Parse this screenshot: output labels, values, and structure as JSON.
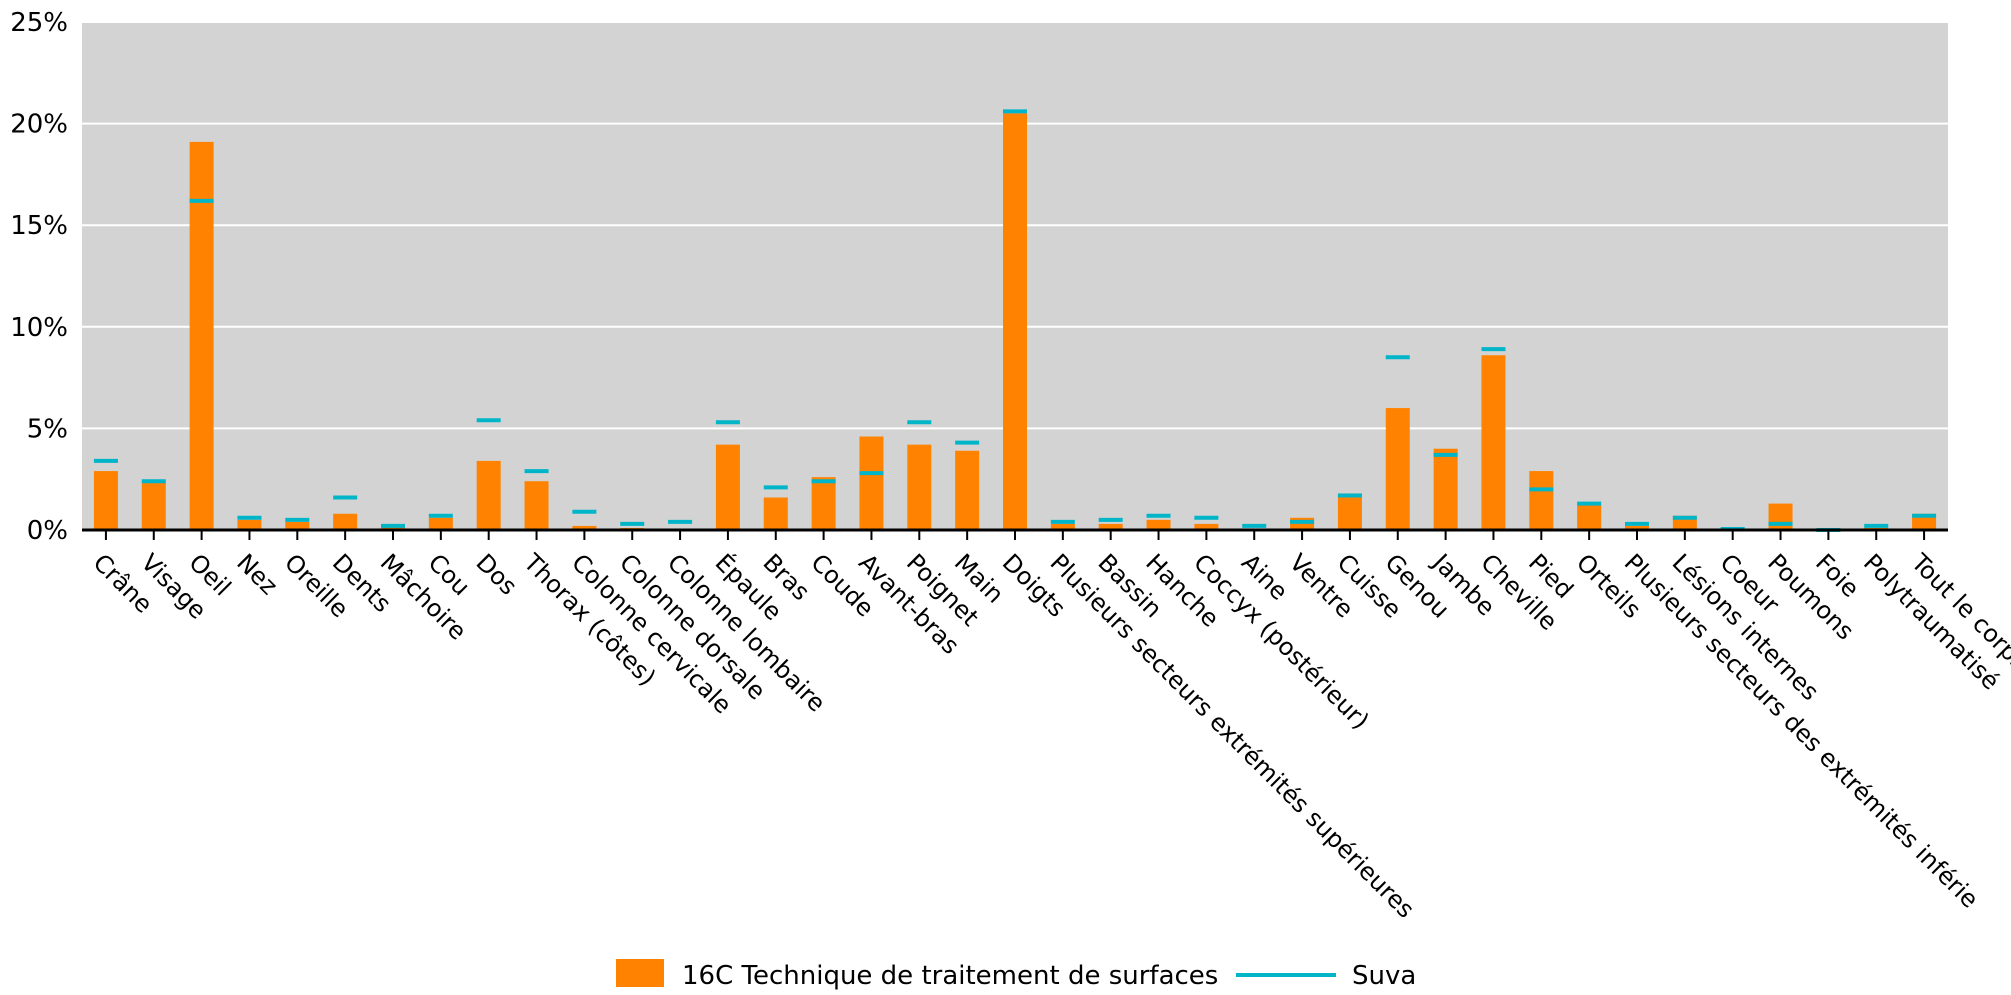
{
  "chart_data": {
    "type": "bar",
    "title": "",
    "xlabel": "",
    "ylabel": "",
    "ylim": [
      0,
      25
    ],
    "y_ticks": [
      "0%",
      "5%",
      "10%",
      "15%",
      "20%",
      "25%"
    ],
    "y_tick_values": [
      0,
      5,
      10,
      15,
      20,
      25
    ],
    "grid": true,
    "legend_position": "bottom",
    "categories": [
      "Crâne",
      "Visage",
      "Oeil",
      "Nez",
      "Oreille",
      "Dents",
      "Mâchoire",
      "Cou",
      "Dos",
      "Thorax (côtes)",
      "Colonne cervicale",
      "Colonne dorsale",
      "Colonne lombaire",
      "Épaule",
      "Bras",
      "Coude",
      "Avant-bras",
      "Poignet",
      "Main",
      "Doigts",
      "Plusieurs secteurs extrémités supérieures",
      "Bassin",
      "Hanche",
      "Coccyx (postérieur)",
      "Aine",
      "Ventre",
      "Cuisse",
      "Genou",
      "Jambe",
      "Cheville",
      "Pied",
      "Orteils",
      "Plusieurs secteurs des extrémités inférie",
      "Lésions internes",
      "Coeur",
      "Poumons",
      "Foie",
      "Polytraumatisé",
      "Tout le corps"
    ],
    "series": [
      {
        "name": "16C Technique de traitement de surfaces",
        "type": "bar",
        "color": "#ff8200",
        "values": [
          2.9,
          2.4,
          19.1,
          0.5,
          0.4,
          0.8,
          0.2,
          0.6,
          3.4,
          2.4,
          0.2,
          0.1,
          0.0,
          4.2,
          1.6,
          2.6,
          4.6,
          4.2,
          3.9,
          20.5,
          0.3,
          0.3,
          0.5,
          0.3,
          0.0,
          0.6,
          1.8,
          6.0,
          4.0,
          8.6,
          2.9,
          1.3,
          0.2,
          0.7,
          0.0,
          1.3,
          0.0,
          0.1,
          0.8
        ]
      },
      {
        "name": "Suva",
        "type": "marker",
        "color": "#00b5c8",
        "values": [
          3.4,
          2.4,
          16.2,
          0.6,
          0.5,
          1.6,
          0.2,
          0.7,
          5.4,
          2.9,
          0.9,
          0.3,
          0.4,
          5.3,
          2.1,
          2.4,
          2.8,
          5.3,
          4.3,
          20.6,
          0.4,
          0.5,
          0.7,
          0.6,
          0.2,
          0.4,
          1.7,
          8.5,
          3.7,
          8.9,
          2.0,
          1.3,
          0.3,
          0.6,
          0.05,
          0.3,
          0.0,
          0.2,
          0.7
        ]
      }
    ]
  },
  "colors": {
    "plot_background": "#d3d3d3",
    "gridline": "#ffffff",
    "axis": "#000000"
  }
}
